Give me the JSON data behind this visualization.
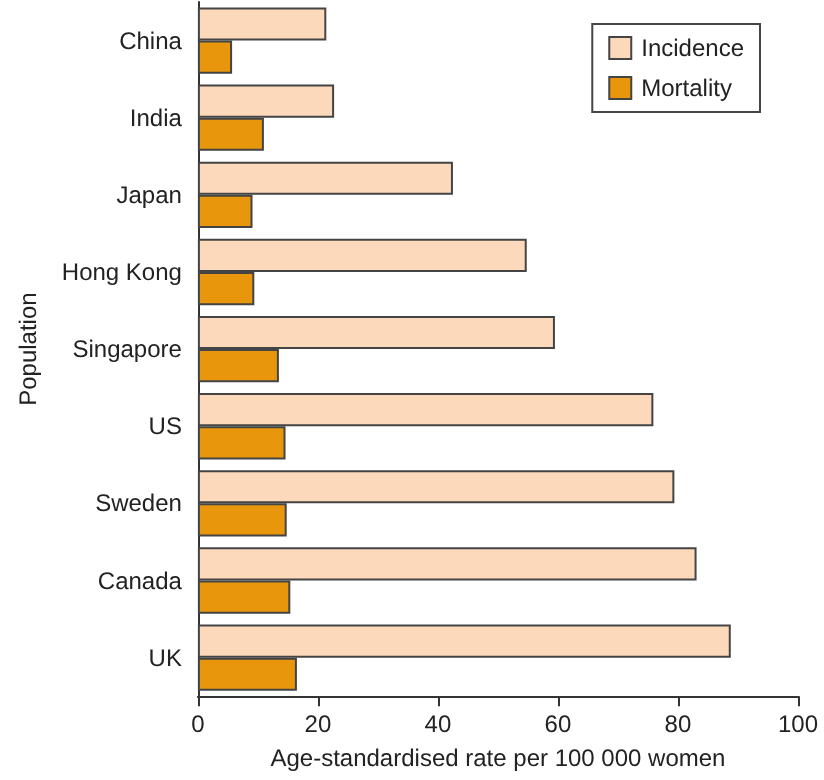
{
  "chart_data": {
    "type": "bar",
    "orientation": "horizontal",
    "xlabel": "Age-standardised rate per 100 000 women",
    "ylabel": "Population",
    "categories": [
      "China",
      "India",
      "Japan",
      "Hong Kong",
      "Singapore",
      "US",
      "Sweden",
      "Canada",
      "UK"
    ],
    "series": [
      {
        "name": "Incidence",
        "color": "#fdd9bc",
        "values": [
          21.4,
          22.7,
          42.5,
          54.8,
          59.5,
          75.9,
          79.4,
          83.1,
          88.8
        ]
      },
      {
        "name": "Mortality",
        "color": "#e8960c",
        "values": [
          5.7,
          11,
          9.1,
          9.4,
          13.5,
          14.6,
          14.8,
          15.4,
          16.5
        ]
      }
    ],
    "xlim": [
      0,
      100
    ],
    "xticks": [
      0,
      20,
      40,
      60,
      80,
      100
    ],
    "grid": false,
    "legend": "top right"
  }
}
